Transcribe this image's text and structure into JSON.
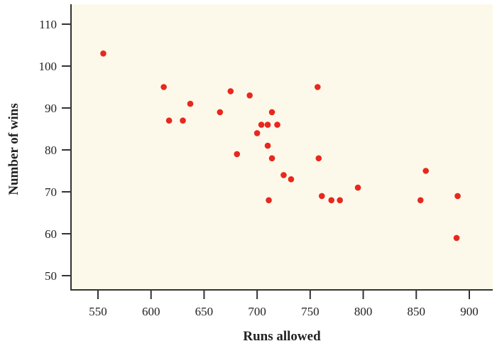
{
  "chart_data": {
    "type": "scatter",
    "title": "",
    "xlabel": "Runs allowed",
    "ylabel": "Number of wins",
    "xlim": [
      527,
      928
    ],
    "ylim": [
      46.8,
      114.8
    ],
    "xticks": [
      550,
      600,
      650,
      700,
      750,
      800,
      850,
      900
    ],
    "yticks": [
      50,
      60,
      70,
      80,
      90,
      100,
      110
    ],
    "grid": false,
    "legend": null,
    "colors": {
      "background": "#FDF9EA",
      "point": "#E8281E",
      "axis": "#333333"
    },
    "points": [
      {
        "x": 555,
        "y": 103
      },
      {
        "x": 612,
        "y": 95
      },
      {
        "x": 617,
        "y": 87
      },
      {
        "x": 630,
        "y": 87
      },
      {
        "x": 637,
        "y": 91
      },
      {
        "x": 665,
        "y": 89
      },
      {
        "x": 675,
        "y": 94
      },
      {
        "x": 681,
        "y": 79
      },
      {
        "x": 693,
        "y": 93
      },
      {
        "x": 700,
        "y": 84
      },
      {
        "x": 704,
        "y": 86
      },
      {
        "x": 710,
        "y": 86
      },
      {
        "x": 710,
        "y": 81
      },
      {
        "x": 714,
        "y": 89
      },
      {
        "x": 714,
        "y": 78
      },
      {
        "x": 719,
        "y": 86
      },
      {
        "x": 711,
        "y": 68
      },
      {
        "x": 725,
        "y": 74
      },
      {
        "x": 732,
        "y": 73
      },
      {
        "x": 757,
        "y": 95
      },
      {
        "x": 758,
        "y": 78
      },
      {
        "x": 761,
        "y": 69
      },
      {
        "x": 770,
        "y": 68
      },
      {
        "x": 778,
        "y": 68
      },
      {
        "x": 795,
        "y": 71
      },
      {
        "x": 854,
        "y": 68
      },
      {
        "x": 859,
        "y": 75
      },
      {
        "x": 888,
        "y": 59
      },
      {
        "x": 889,
        "y": 69
      }
    ]
  }
}
